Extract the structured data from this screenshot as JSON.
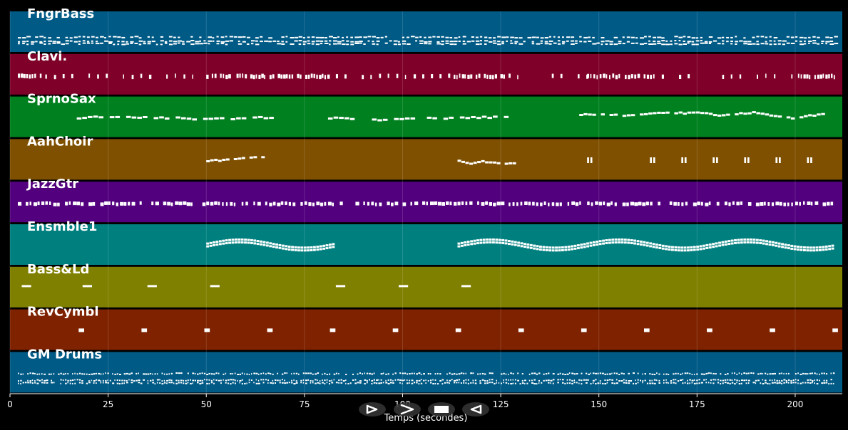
{
  "window": {
    "background": "#000000"
  },
  "timeline": {
    "x_min": 0,
    "x_max": 212,
    "ticks": [
      0,
      25,
      50,
      75,
      100,
      125,
      150,
      175,
      200
    ],
    "xlabel": "Temps (secondes)"
  },
  "tracks": [
    {
      "name": "FngrBass",
      "color": "#005a86",
      "patterns": [
        {
          "type": "dense",
          "start": 2,
          "end": 210,
          "step": 1.1,
          "len": 0.8,
          "rows": [
            0.62,
            0.72,
            0.78
          ],
          "h": 2
        }
      ]
    },
    {
      "name": "Clavi.",
      "color": "#7f0029",
      "patterns": [
        {
          "type": "dense",
          "start": 2,
          "end": 8,
          "step": 0.7,
          "len": 0.5,
          "rows": [
            0.5
          ],
          "h": 6
        },
        {
          "type": "dense",
          "start": 9,
          "end": 49,
          "step": 2.2,
          "len": 0.45,
          "rows": [
            0.5
          ],
          "h": 6
        },
        {
          "type": "dense",
          "start": 50,
          "end": 82,
          "step": 0.7,
          "len": 0.5,
          "rows": [
            0.5
          ],
          "h": 6
        },
        {
          "type": "dense",
          "start": 83,
          "end": 112,
          "step": 2.2,
          "len": 0.45,
          "rows": [
            0.5
          ],
          "h": 6
        },
        {
          "type": "dense",
          "start": 113,
          "end": 126,
          "step": 0.7,
          "len": 0.5,
          "rows": [
            0.5
          ],
          "h": 6
        },
        {
          "type": "dense",
          "start": 127,
          "end": 147,
          "step": 2.2,
          "len": 0.45,
          "rows": [
            0.5
          ],
          "h": 6
        },
        {
          "type": "dense",
          "start": 147,
          "end": 165,
          "step": 0.8,
          "len": 0.5,
          "rows": [
            0.5
          ],
          "h": 6
        },
        {
          "type": "dense",
          "start": 166,
          "end": 200,
          "step": 2.2,
          "len": 0.45,
          "rows": [
            0.5
          ],
          "h": 6
        },
        {
          "type": "dense",
          "start": 200,
          "end": 210,
          "step": 0.7,
          "len": 0.5,
          "rows": [
            0.5
          ],
          "h": 6
        }
      ]
    },
    {
      "name": "SprnoSax",
      "color": "#00801f",
      "patterns": [
        {
          "type": "melody",
          "start": 17,
          "end": 66,
          "step": 1.4,
          "len": 1.2,
          "base": 0.5,
          "amp": 0.12,
          "h": 3
        },
        {
          "type": "melody",
          "start": 81,
          "end": 128,
          "step": 1.4,
          "len": 1.2,
          "base": 0.5,
          "amp": 0.12,
          "h": 3
        },
        {
          "type": "melody",
          "start": 145,
          "end": 207,
          "step": 1.1,
          "len": 1.0,
          "base": 0.45,
          "amp": 0.18,
          "h": 3
        }
      ]
    },
    {
      "name": "AahChoir",
      "color": "#7f5000",
      "patterns": [
        {
          "type": "melody",
          "start": 50,
          "end": 65,
          "step": 1.0,
          "len": 0.9,
          "base": 0.5,
          "amp": 0.08,
          "h": 3
        },
        {
          "type": "melody",
          "start": 114,
          "end": 129,
          "step": 1.0,
          "len": 0.9,
          "base": 0.5,
          "amp": 0.08,
          "h": 3
        },
        {
          "type": "clusters",
          "at": [
            147,
            163,
            171,
            179,
            187,
            195,
            203
          ],
          "w": 1.4,
          "y": 0.45,
          "h": 8
        }
      ]
    },
    {
      "name": "JazzGtr",
      "color": "#53007e",
      "patterns": [
        {
          "type": "dense",
          "start": 2,
          "end": 210,
          "step": 1.0,
          "len": 0.7,
          "rows": [
            0.5
          ],
          "h": 5
        }
      ]
    },
    {
      "name": "Ensmble1",
      "color": "#007f7f",
      "patterns": [
        {
          "type": "wave",
          "start": 50,
          "end": 82,
          "step": 0.8,
          "len": 0.7,
          "base": 0.45,
          "amp": 0.1,
          "h": 3
        },
        {
          "type": "wave",
          "start": 114,
          "end": 210,
          "step": 0.8,
          "len": 0.7,
          "base": 0.45,
          "amp": 0.1,
          "h": 3
        }
      ]
    },
    {
      "name": "Bass&Ld",
      "color": "#7f7f00",
      "patterns": [
        {
          "type": "clusters",
          "at": [
            3,
            18.5,
            35,
            51,
            83,
            99,
            115
          ],
          "w": 2.4,
          "y": 0.45,
          "h": 3
        }
      ]
    },
    {
      "name": "RevCymbl",
      "color": "#7f2200",
      "patterns": [
        {
          "type": "clusters",
          "at": [
            17.5,
            33.5,
            49.5,
            65.5,
            81.5,
            97.5,
            113.5,
            129.5,
            145.5,
            161.5,
            177.5,
            193.5,
            209.5
          ],
          "w": 1.4,
          "y": 0.47,
          "h": 5
        }
      ]
    },
    {
      "name": "GM Drums",
      "color": "#005a86",
      "patterns": [
        {
          "type": "dense",
          "start": 2,
          "end": 210,
          "step": 0.6,
          "len": 0.4,
          "rows": [
            0.52,
            0.68,
            0.75
          ],
          "h": 2
        }
      ]
    }
  ],
  "controls": [
    {
      "name": "play-forward-button",
      "icon": "play-icon"
    },
    {
      "name": "fast-forward-button",
      "icon": "chevron-right-icon"
    },
    {
      "name": "stop-button",
      "icon": "stop-icon"
    },
    {
      "name": "rewind-button",
      "icon": "rewind-icon"
    }
  ]
}
